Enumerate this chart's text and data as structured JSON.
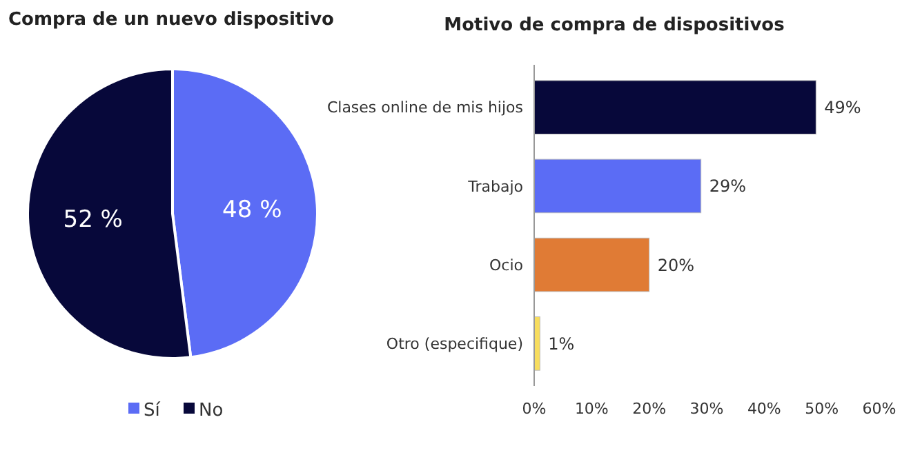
{
  "chart_data": [
    {
      "type": "pie",
      "title": "Compra de un nuevo dispositivo",
      "categories": [
        "Sí",
        "No"
      ],
      "values": [
        48,
        52
      ],
      "colors": [
        "#5b6cf5",
        "#07083a"
      ],
      "value_labels": [
        "48 %",
        "52 %"
      ],
      "legend": "bottom"
    },
    {
      "type": "bar",
      "orientation": "horizontal",
      "title": "Motivo de compra de dispositivos",
      "categories": [
        "Clases online de mis hijos",
        "Trabajo",
        "Ocio",
        "Otro (especifique)"
      ],
      "values": [
        49,
        29,
        20,
        1
      ],
      "colors": [
        "#07083a",
        "#5b6cf5",
        "#e07b35",
        "#f7dd5e"
      ],
      "value_labels": [
        "49%",
        "29%",
        "20%",
        "1%"
      ],
      "xlim": [
        0,
        60
      ],
      "xticks": [
        {
          "value": 0,
          "label": "0%"
        },
        {
          "value": 10,
          "label": "10%"
        },
        {
          "value": 20,
          "label": "20%"
        },
        {
          "value": 30,
          "label": "30%"
        },
        {
          "value": 40,
          "label": "40%"
        },
        {
          "value": 50,
          "label": "50%"
        },
        {
          "value": 60,
          "label": "60%"
        }
      ],
      "grid": false
    }
  ]
}
